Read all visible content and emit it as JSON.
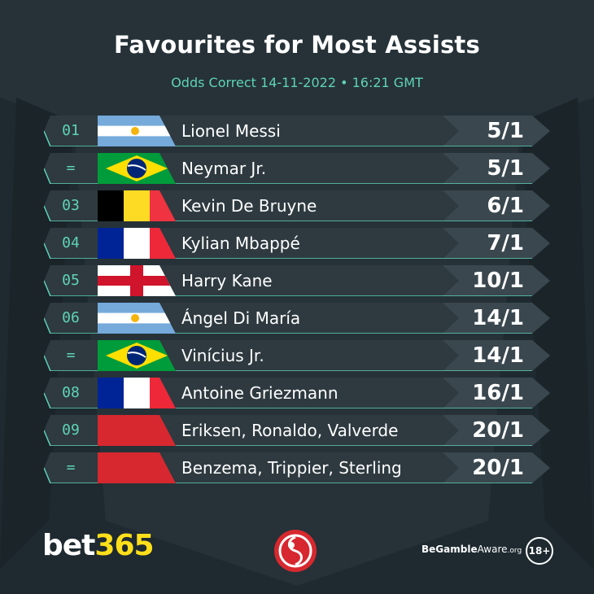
{
  "title": "Favourites for Most Assists",
  "subtitle": "Odds Correct 14-11-2022 • 16:21 GMT",
  "rows": [
    {
      "rank": "01",
      "flag": "argentina",
      "name": "Lionel Messi",
      "odds": "5/1"
    },
    {
      "rank": "=",
      "flag": "brazil",
      "name": "Neymar Jr.",
      "odds": "5/1"
    },
    {
      "rank": "03",
      "flag": "belgium",
      "name": "Kevin De Bruyne",
      "odds": "6/1"
    },
    {
      "rank": "04",
      "flag": "france",
      "name": "Kylian Mbappé",
      "odds": "7/1"
    },
    {
      "rank": "05",
      "flag": "england",
      "name": "Harry Kane",
      "odds": "10/1"
    },
    {
      "rank": "06",
      "flag": "argentina",
      "name": "Ángel Di María",
      "odds": "14/1"
    },
    {
      "rank": "=",
      "flag": "brazil",
      "name": "Vinícius Jr.",
      "odds": "14/1"
    },
    {
      "rank": "08",
      "flag": "france",
      "name": "Antoine Griezmann",
      "odds": "16/1"
    },
    {
      "rank": "09",
      "flag": "red",
      "name": "Eriksen, Ronaldo, Valverde",
      "odds": "20/1"
    },
    {
      "rank": "=",
      "flag": "red",
      "name": "Benzema, Trippier, Sterling",
      "odds": "20/1"
    }
  ],
  "footer": {
    "logo_part1": "bet",
    "logo_part2": "365",
    "gamble_part1": "BeGamble",
    "gamble_part2": "Aware",
    "gamble_part3": ".org",
    "age": "18+"
  },
  "colors": {
    "background": "#1e2a30",
    "row": "#2e3a40",
    "odds_box": "#3a474e",
    "accent": "#5fd3b8",
    "logo_yellow": "#ffdf1b",
    "badge_red": "#d7282f"
  }
}
